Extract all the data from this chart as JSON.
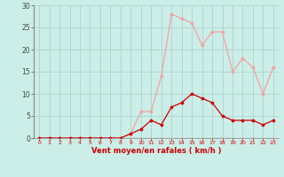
{
  "x": [
    0,
    1,
    2,
    3,
    4,
    5,
    6,
    7,
    8,
    9,
    10,
    11,
    12,
    13,
    14,
    15,
    16,
    17,
    18,
    19,
    20,
    21,
    22,
    23
  ],
  "y_rafales": [
    0,
    0,
    0,
    0,
    0,
    0,
    0,
    0,
    0,
    1,
    6,
    6,
    14,
    28,
    27,
    26,
    21,
    24,
    24,
    15,
    18,
    16,
    10,
    16
  ],
  "y_moyen": [
    0,
    0,
    0,
    0,
    0,
    0,
    0,
    0,
    0,
    1,
    2,
    4,
    3,
    7,
    8,
    10,
    9,
    8,
    5,
    4,
    4,
    4,
    3,
    4
  ],
  "bg_color": "#cceee8",
  "grid_color": "#aad4cc",
  "line_color_rafales": "#f4a0a0",
  "line_color_moyen": "#cc0000",
  "marker_color_rafales": "#f4a0a0",
  "marker_color_moyen": "#cc0000",
  "xlabel": "Vent moyen/en rafales ( km/h )",
  "ylim": [
    0,
    30
  ],
  "xlim": [
    -0.5,
    23.5
  ],
  "yticks": [
    0,
    5,
    10,
    15,
    20,
    25,
    30
  ],
  "xticks": [
    0,
    1,
    2,
    3,
    4,
    5,
    6,
    7,
    8,
    9,
    10,
    11,
    12,
    13,
    14,
    15,
    16,
    17,
    18,
    19,
    20,
    21,
    22,
    23
  ],
  "axis_color": "#888888",
  "tick_color_x": "#cc0000",
  "tick_color_y": "#444444",
  "xlabel_color": "#cc0000",
  "spine_left_color": "#888888"
}
